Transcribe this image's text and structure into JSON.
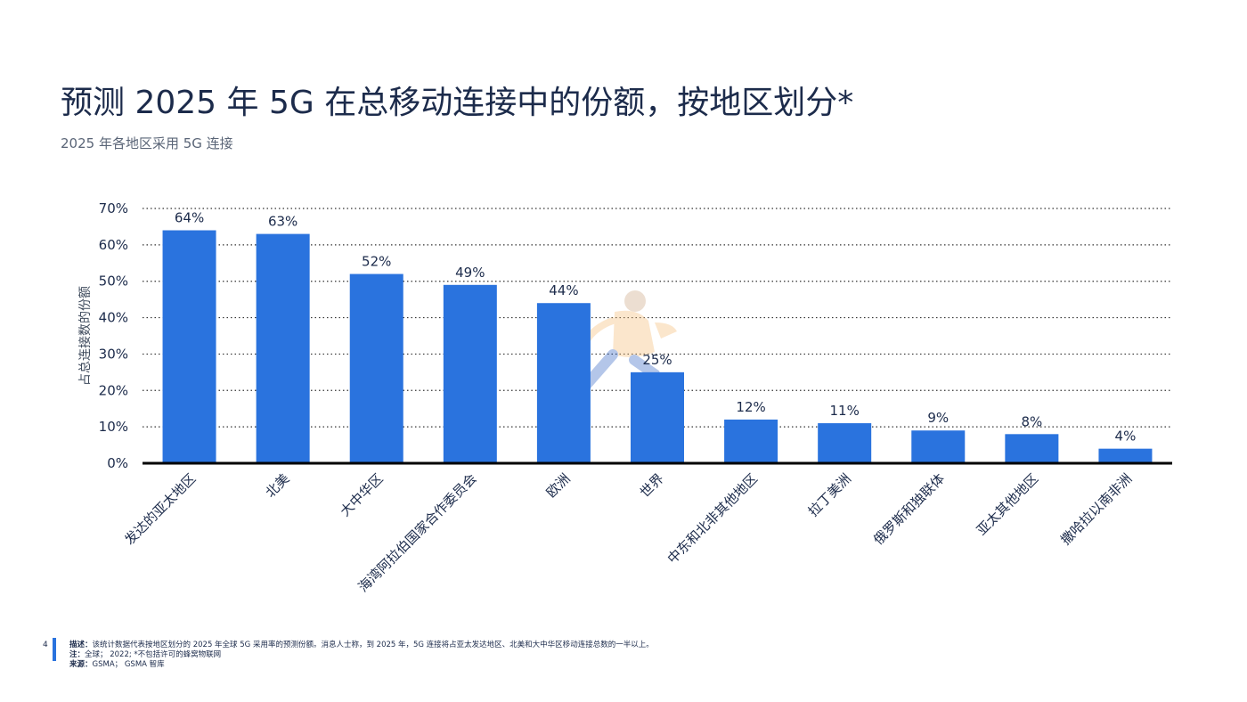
{
  "header": {
    "title": "预测 2025 年 5G 在总移动连接中的份额，按地区划分*",
    "subtitle": "2025 年各地区采用 5G 连接"
  },
  "chart_data": {
    "type": "bar",
    "ylabel": "占总连接数的份额",
    "ylim": [
      0,
      70
    ],
    "yticks": [
      "0%",
      "10%",
      "20%",
      "30%",
      "40%",
      "50%",
      "60%",
      "70%"
    ],
    "grid": true,
    "bar_color": "#2a73de",
    "categories": [
      "发达的亚太地区",
      "北美",
      "大中华区",
      "海湾阿拉伯国家合作委员会",
      "欧洲",
      "世界",
      "中东和北非其他地区",
      "拉丁美洲",
      "俄罗斯和独联体",
      "亚太其他地区",
      "撒哈拉以南非洲"
    ],
    "values": [
      64,
      63,
      52,
      49,
      44,
      25,
      12,
      11,
      9,
      8,
      4
    ],
    "data_labels": [
      "64%",
      "63%",
      "52%",
      "49%",
      "44%",
      "25%",
      "12%",
      "11%",
      "9%",
      "8%",
      "4%"
    ]
  },
  "footer": {
    "page_number": "4",
    "description_label": "描述：",
    "description": "该统计数据代表按地区划分的 2025 年全球 5G 采用率的预测份额。消息人士称，到 2025 年，5G 连接将占亚太发达地区、北美和大中华区移动连接总数的一半以上。",
    "note_label": "注：",
    "note": "全球； 2022; *不包括许可的蜂窝物联网",
    "source_label": "来源：",
    "source": "GSMA； GSMA 智库"
  }
}
